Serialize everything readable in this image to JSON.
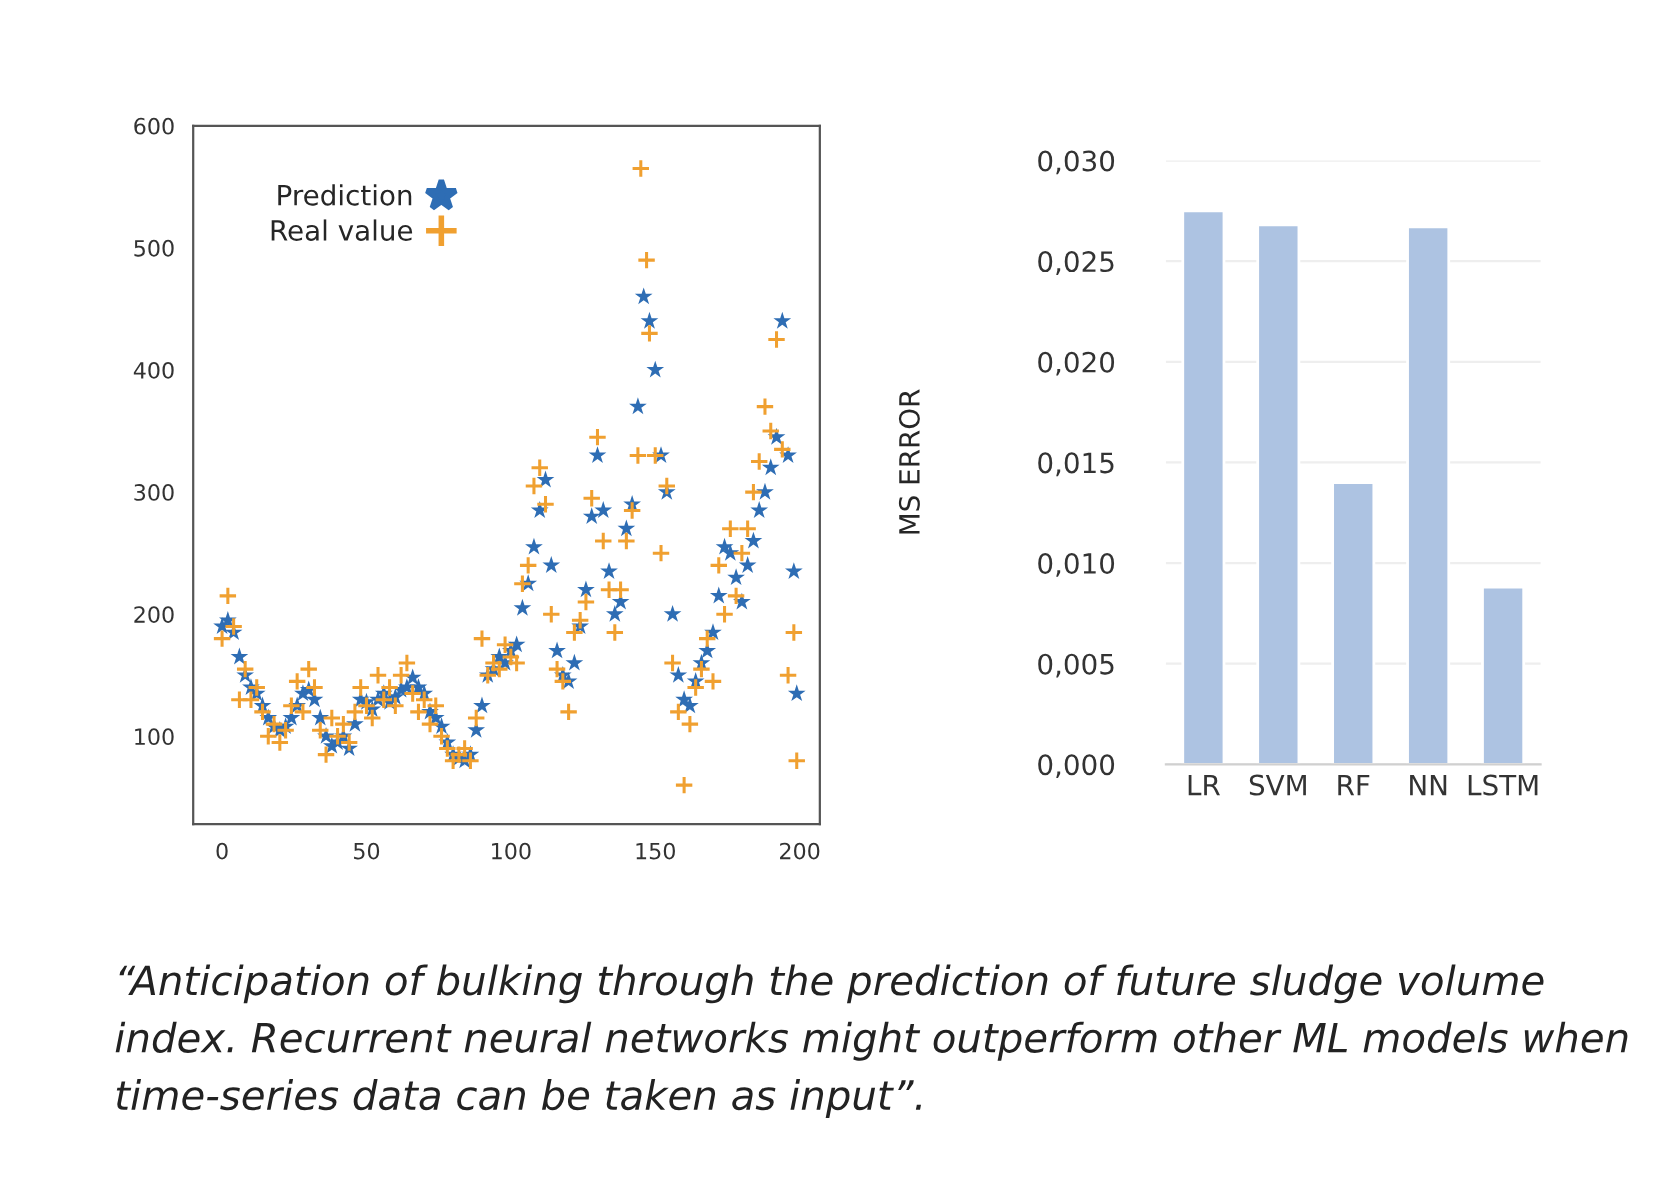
{
  "chart_data": [
    {
      "type": "scatter",
      "xlim": [
        -10,
        207
      ],
      "ylim": [
        28,
        600
      ],
      "xticks": [
        0,
        50,
        100,
        150,
        200
      ],
      "yticks": [
        100,
        200,
        300,
        400,
        500,
        600
      ],
      "grid": false,
      "legend": "top left",
      "annotations": [
        "“Anticipation of bulking through the prediction of future sludge volume index. Recurrent neural networks might outperform other ML models when time-series data can be taken as input”."
      ],
      "series": [
        {
          "name": "Prediction",
          "color": "#2e6db4",
          "marker": "star",
          "x": [
            0,
            2,
            4,
            6,
            8,
            10,
            12,
            14,
            16,
            18,
            20,
            22,
            24,
            26,
            28,
            30,
            32,
            34,
            36,
            38,
            40,
            42,
            44,
            46,
            48,
            50,
            52,
            54,
            56,
            58,
            60,
            62,
            64,
            66,
            68,
            70,
            72,
            74,
            76,
            78,
            80,
            82,
            84,
            86,
            88,
            90,
            92,
            94,
            96,
            98,
            100,
            102,
            104,
            106,
            108,
            110,
            112,
            114,
            116,
            118,
            120,
            122,
            124,
            126,
            128,
            130,
            132,
            134,
            136,
            138,
            140,
            142,
            144,
            146,
            148,
            150,
            152,
            154,
            156,
            158,
            160,
            162,
            164,
            166,
            168,
            170,
            172,
            174,
            176,
            178,
            180,
            182,
            184,
            186,
            188,
            190,
            192,
            194,
            196,
            198,
            199
          ],
          "values": [
            190,
            195,
            185,
            165,
            150,
            140,
            135,
            125,
            115,
            108,
            105,
            108,
            115,
            125,
            135,
            138,
            130,
            115,
            100,
            92,
            95,
            100,
            90,
            110,
            130,
            128,
            122,
            130,
            135,
            128,
            132,
            138,
            140,
            148,
            140,
            135,
            120,
            115,
            108,
            95,
            85,
            82,
            80,
            85,
            105,
            125,
            150,
            155,
            165,
            160,
            170,
            175,
            205,
            225,
            255,
            285,
            310,
            240,
            170,
            150,
            145,
            160,
            190,
            220,
            280,
            330,
            285,
            235,
            200,
            210,
            270,
            290,
            370,
            460,
            440,
            400,
            330,
            300,
            200,
            150,
            130,
            125,
            145,
            160,
            170,
            185,
            215,
            255,
            250,
            230,
            210,
            240,
            260,
            285,
            300,
            320,
            345,
            440,
            330,
            235,
            135
          ]
        },
        {
          "name": "Real value",
          "color": "#f0a030",
          "marker": "cross",
          "x": [
            0,
            2,
            4,
            6,
            8,
            10,
            12,
            14,
            16,
            18,
            20,
            22,
            24,
            26,
            28,
            30,
            32,
            34,
            36,
            38,
            40,
            42,
            44,
            46,
            48,
            50,
            52,
            54,
            56,
            58,
            60,
            62,
            64,
            66,
            68,
            70,
            72,
            74,
            76,
            78,
            80,
            82,
            84,
            86,
            88,
            90,
            92,
            94,
            96,
            98,
            100,
            102,
            104,
            106,
            108,
            110,
            112,
            114,
            116,
            118,
            120,
            122,
            124,
            126,
            128,
            130,
            132,
            134,
            136,
            138,
            140,
            142,
            144,
            145,
            147,
            148,
            150,
            152,
            154,
            156,
            158,
            160,
            162,
            164,
            166,
            168,
            170,
            172,
            174,
            176,
            178,
            180,
            182,
            184,
            186,
            188,
            190,
            192,
            194,
            196,
            198,
            199
          ],
          "values": [
            180,
            215,
            190,
            130,
            155,
            130,
            140,
            120,
            100,
            110,
            95,
            105,
            125,
            145,
            120,
            155,
            140,
            105,
            85,
            115,
            100,
            110,
            95,
            120,
            140,
            125,
            115,
            150,
            130,
            140,
            125,
            150,
            160,
            135,
            120,
            130,
            110,
            125,
            100,
            90,
            80,
            85,
            90,
            80,
            115,
            180,
            150,
            160,
            155,
            175,
            165,
            160,
            225,
            240,
            305,
            320,
            290,
            200,
            155,
            145,
            120,
            185,
            195,
            210,
            295,
            345,
            260,
            220,
            185,
            220,
            260,
            285,
            330,
            565,
            490,
            430,
            330,
            250,
            305,
            160,
            120,
            60,
            110,
            140,
            155,
            180,
            145,
            240,
            200,
            270,
            215,
            250,
            270,
            300,
            325,
            370,
            350,
            425,
            335,
            150,
            185,
            80
          ]
        }
      ]
    },
    {
      "type": "bar",
      "categories": [
        "LR",
        "SVM",
        "RF",
        "NN",
        "LSTM"
      ],
      "values": [
        0.0275,
        0.0268,
        0.014,
        0.0267,
        0.0088
      ],
      "color": "#adc3e2",
      "ylabel": "MS ERROR",
      "ylim": [
        0,
        0.03
      ],
      "grid": "y",
      "yticks": [
        {
          "value": 0,
          "label": "0,000"
        },
        {
          "value": 0.005,
          "label": "0,005"
        },
        {
          "value": 0.01,
          "label": "0,010"
        },
        {
          "value": 0.015,
          "label": "0,015"
        },
        {
          "value": 0.02,
          "label": "0,020"
        },
        {
          "value": 0.025,
          "label": "0,025"
        },
        {
          "value": 0.03,
          "label": "0,030"
        }
      ]
    }
  ]
}
